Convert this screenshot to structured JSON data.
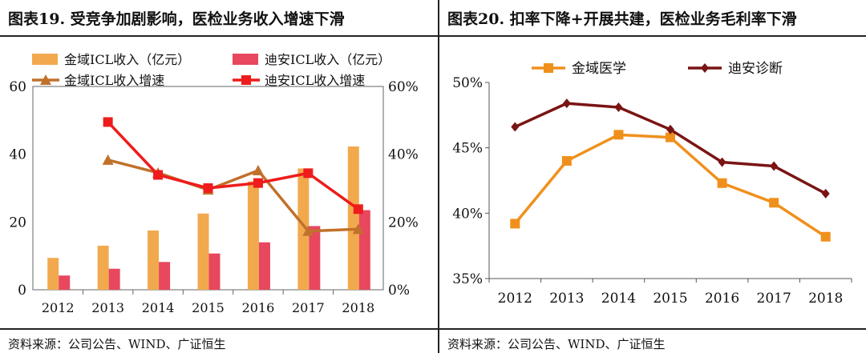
{
  "footer_source": "资料来源：公司公告、WIND、广证恒生",
  "left": {
    "title": "图表19.  受竞争加剧影响，医检业务收入增速下滑"
  },
  "right": {
    "title": "图表20.  扣率下降+开展共建，医检业务毛利率下滑"
  },
  "colors": {
    "jc_bar": "#f2a94e",
    "da_bar": "#e8475e",
    "jc_growth_line": "#c0712b",
    "da_growth_line": "#ee1c1c",
    "jc_margin_line": "#f0901c",
    "da_margin_line": "#7a1414"
  },
  "chart_data": [
    {
      "type": "bar",
      "title": "受竞争加剧影响，医检业务收入增速下滑",
      "categories": [
        "2012",
        "2013",
        "2014",
        "2015",
        "2016",
        "2017",
        "2018"
      ],
      "ylim": [
        0,
        60
      ],
      "yticks": [
        "0",
        "20",
        "40",
        "60"
      ],
      "y2lim": [
        0,
        60
      ],
      "y2ticks": [
        "0%",
        "20%",
        "40%",
        "60%"
      ],
      "series": [
        {
          "name": "金域ICL收入（亿元）",
          "kind": "bar",
          "axis": "left",
          "values": [
            9.4,
            13.0,
            17.5,
            22.5,
            32.0,
            35.8,
            42.3
          ]
        },
        {
          "name": "迪安ICL收入（亿元）",
          "kind": "bar",
          "axis": "left",
          "values": [
            4.2,
            6.2,
            8.2,
            10.7,
            14.0,
            18.8,
            23.5
          ]
        },
        {
          "name": "金域ICL收入增速",
          "kind": "line",
          "axis": "right",
          "marker": "triangle",
          "values": [
            null,
            38.3,
            34.5,
            29.5,
            35.2,
            17.3,
            17.9
          ]
        },
        {
          "name": "迪安ICL收入增速",
          "kind": "line",
          "axis": "right",
          "marker": "square",
          "values": [
            null,
            49.5,
            33.9,
            30.0,
            31.5,
            34.4,
            23.8
          ]
        }
      ]
    },
    {
      "type": "line",
      "title": "扣率下降+开展共建，医检业务毛利率下滑",
      "x": [
        "2012",
        "2013",
        "2014",
        "2015",
        "2016",
        "2017",
        "2018"
      ],
      "ylim": [
        35,
        50
      ],
      "yticks": [
        "35%",
        "40%",
        "45%",
        "50%"
      ],
      "series": [
        {
          "name": "金域医学",
          "marker": "square",
          "values": [
            39.2,
            44.0,
            46.0,
            45.8,
            42.3,
            40.8,
            38.2
          ]
        },
        {
          "name": "迪安诊断",
          "marker": "diamond",
          "values": [
            46.6,
            48.4,
            48.1,
            46.4,
            43.9,
            43.6,
            41.5
          ]
        }
      ]
    }
  ]
}
